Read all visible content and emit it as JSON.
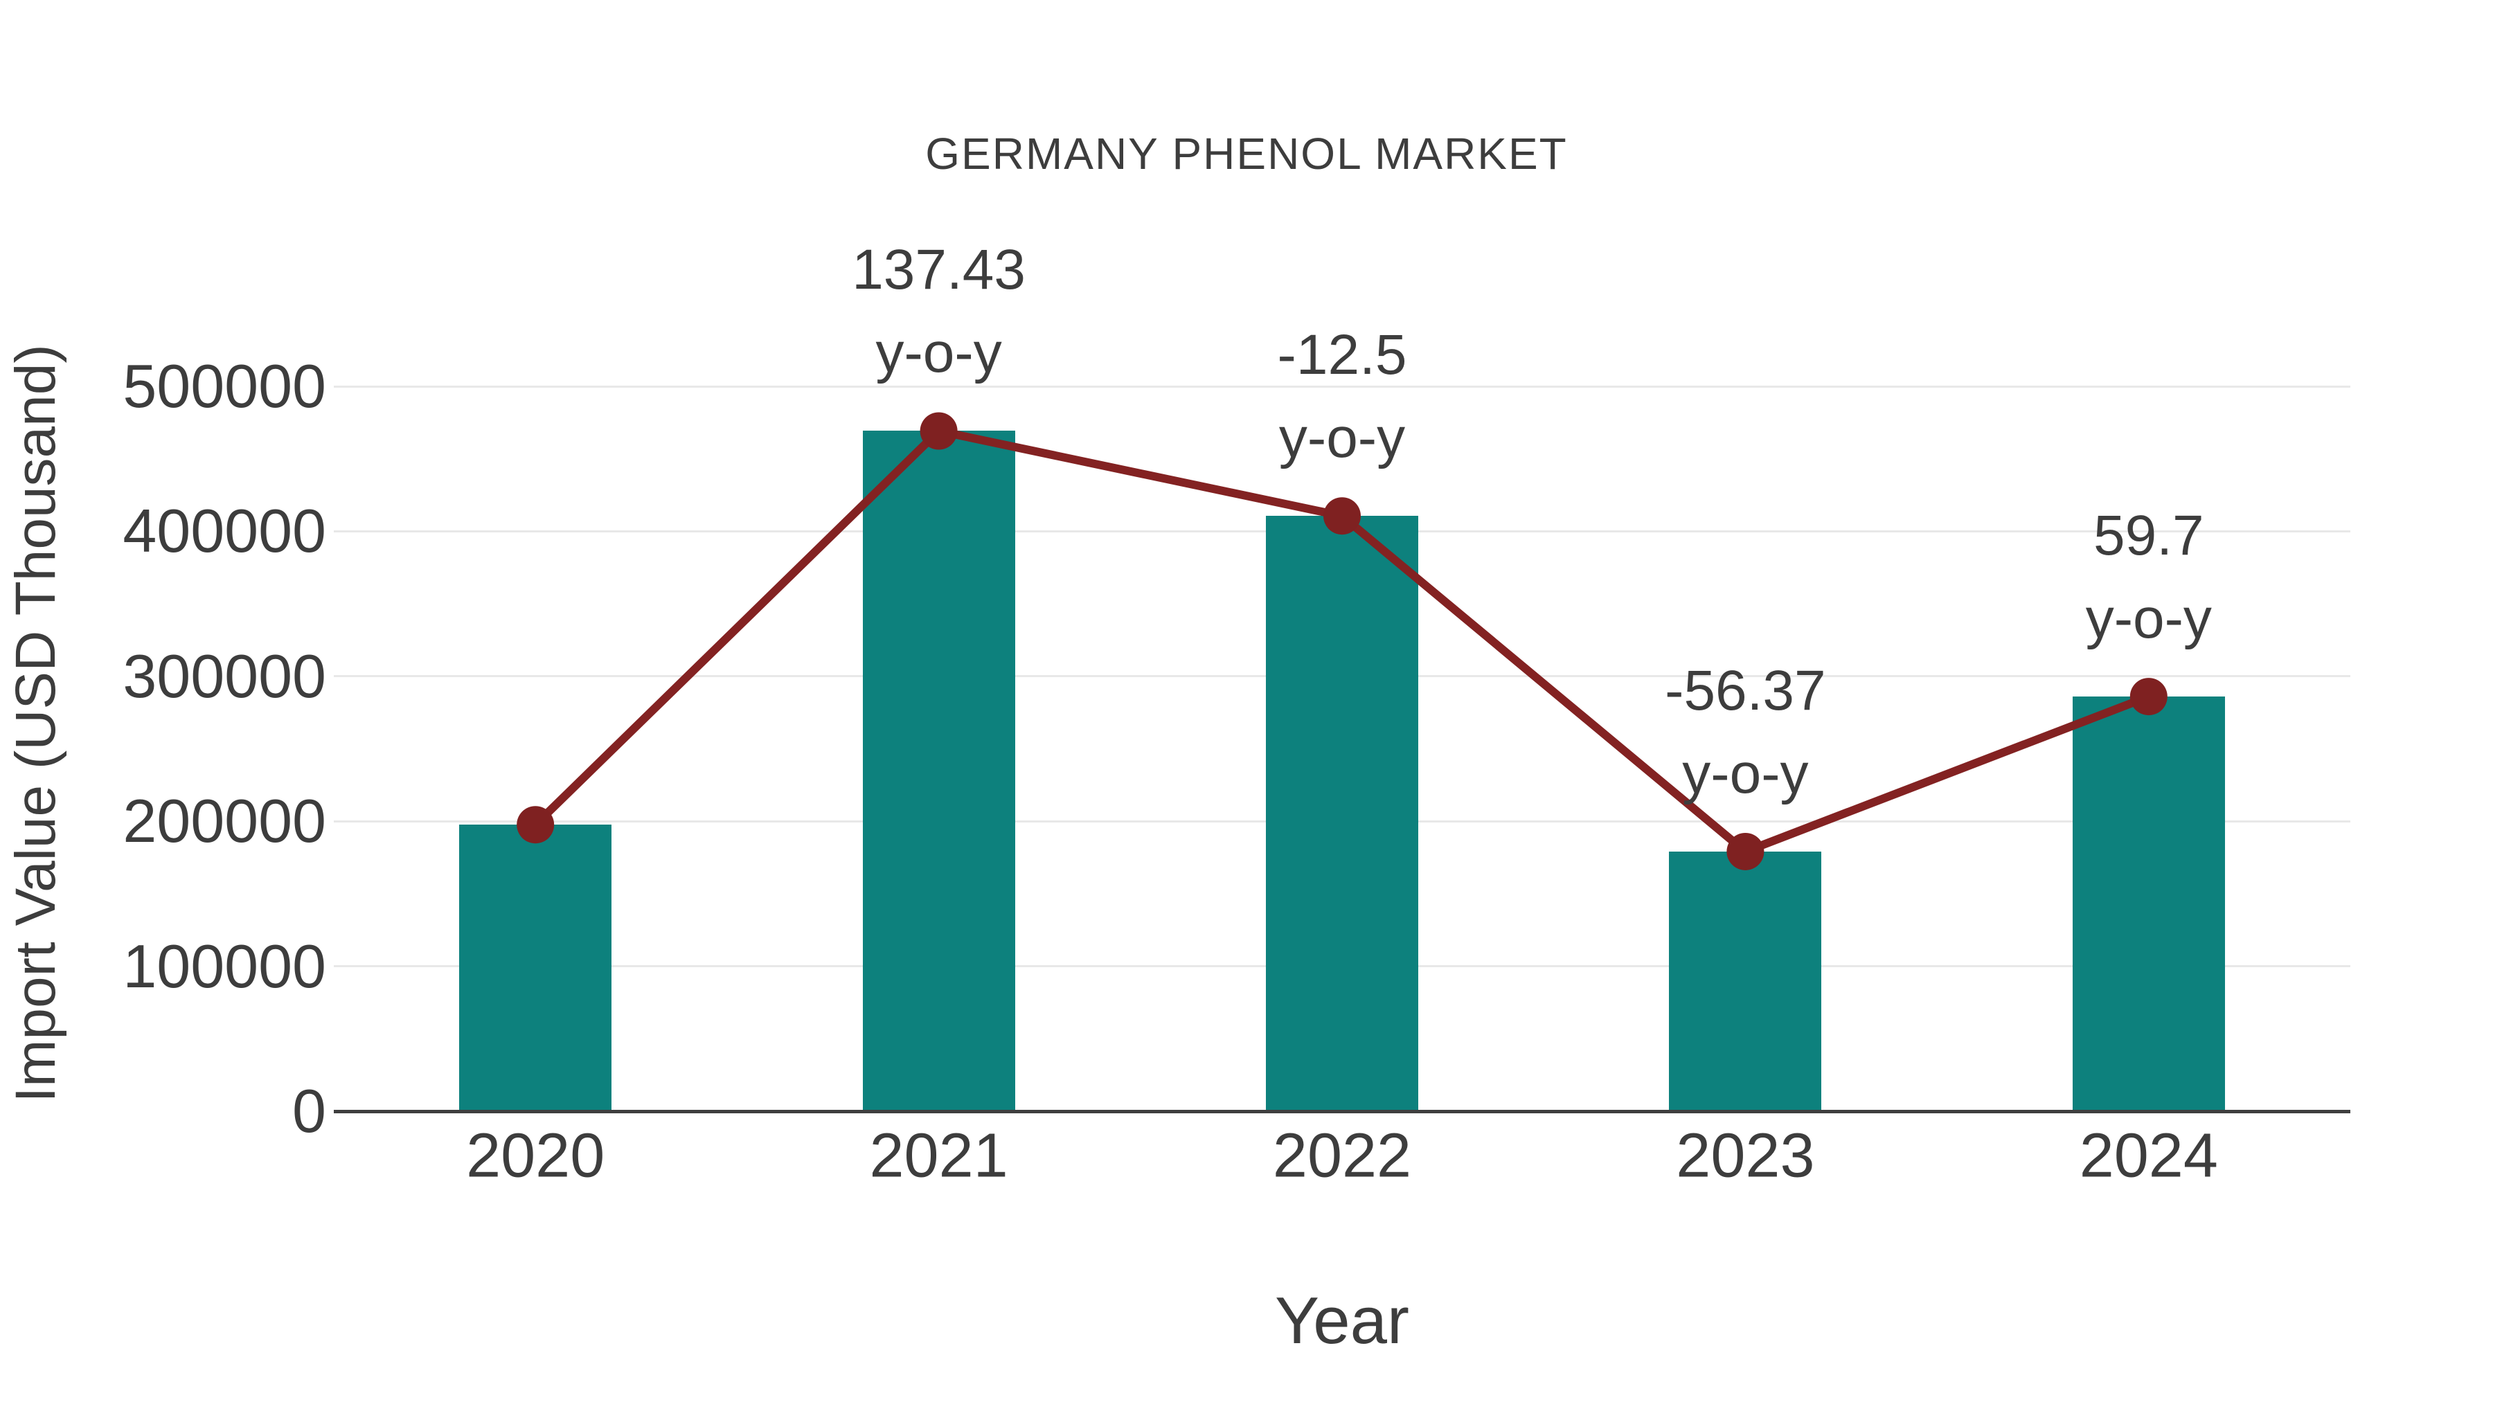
{
  "chart_data": {
    "type": "bar",
    "title": "GERMANY PHENOL MARKET",
    "xlabel": "Year",
    "ylabel": "Import Value (USD Thousand)",
    "categories": [
      "2020",
      "2021",
      "2022",
      "2023",
      "2024"
    ],
    "series": [
      {
        "name": "Import Value bars",
        "type": "bar",
        "values": [
          197600,
          469200,
          410600,
          179100,
          286000
        ]
      },
      {
        "name": "Import Value trend line",
        "type": "line",
        "values": [
          197600,
          469200,
          410600,
          179100,
          286000
        ]
      }
    ],
    "annotations": [
      {
        "category": "2021",
        "value": "137.43",
        "sub": "y-o-y"
      },
      {
        "category": "2022",
        "value": "-12.5",
        "sub": "y-o-y"
      },
      {
        "category": "2023",
        "value": "-56.37",
        "sub": "y-o-y"
      },
      {
        "category": "2024",
        "value": "59.7",
        "sub": "y-o-y"
      }
    ],
    "yticks": [
      0,
      100000,
      200000,
      300000,
      400000,
      500000
    ],
    "ylim": [
      0,
      500000
    ],
    "grid": "horizontal",
    "legend": "none",
    "colors": {
      "bar": "#0d817d",
      "line": "#832222",
      "marker": "#7f2121",
      "grid": "#e8e8e8",
      "axis": "#3f3f3f",
      "text": "#3d3d3d",
      "background": "#ffffff"
    }
  }
}
